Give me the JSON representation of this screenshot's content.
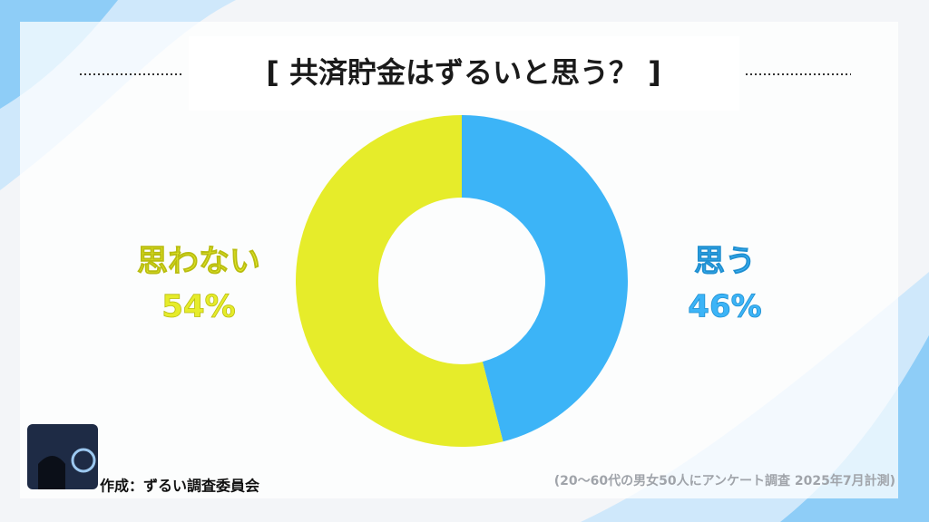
{
  "chart_data": {
    "type": "pie",
    "title": "[ 共済貯金はずるいと思う？ ]",
    "categories": [
      "思う",
      "思わない"
    ],
    "values": [
      46,
      54
    ],
    "value_labels": [
      "46%",
      "54%"
    ],
    "colors": [
      "#3cb4f7",
      "#e6ec2a"
    ]
  },
  "footer": {
    "credit": "作成：ずるい調査委員会",
    "note": "(20〜60代の男女50人にアンケート調査 2025年7月計測)"
  }
}
